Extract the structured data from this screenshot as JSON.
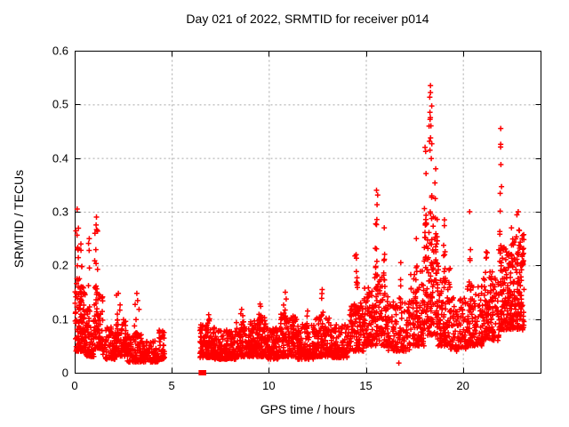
{
  "chart": {
    "title": "Day 021 of 2022, SRMTID for receiver p014",
    "xlabel": "GPS time / hours",
    "ylabel": "SRMTID / TECUs",
    "marker_color": "#ff0000",
    "grid_color": "#a8a8a8",
    "frame_color": "#000000",
    "xtick_labels": [
      "0",
      "5",
      "10",
      "15",
      "20"
    ],
    "ytick_labels": [
      "0",
      "0.1",
      "0.2",
      "0.3",
      "0.4",
      "0.5",
      "0.6"
    ]
  },
  "chart_data": {
    "type": "scatter",
    "title": "Day 021 of 2022, SRMTID for receiver p014",
    "xlabel": "GPS time / hours",
    "ylabel": "SRMTID / TECUs",
    "xlim": [
      0,
      24
    ],
    "ylim": [
      0,
      0.6
    ],
    "xticks": [
      0,
      5,
      10,
      15,
      20
    ],
    "yticks": [
      0,
      0.1,
      0.2,
      0.3,
      0.4,
      0.5,
      0.6
    ],
    "grid": true,
    "legend": "none",
    "marker": "plus",
    "series_color": "#ff0000",
    "seed": 987123,
    "bands": [
      {
        "x0": 0.02,
        "x1": 0.55,
        "n": 120,
        "ylo": 0.04,
        "yhi": 0.175
      },
      {
        "x0": 0.55,
        "x1": 1.0,
        "n": 65,
        "ylo": 0.03,
        "yhi": 0.125
      },
      {
        "x0": 1.0,
        "x1": 1.45,
        "n": 75,
        "ylo": 0.045,
        "yhi": 0.165
      },
      {
        "x0": 1.45,
        "x1": 2.1,
        "n": 80,
        "ylo": 0.025,
        "yhi": 0.085
      },
      {
        "x0": 2.1,
        "x1": 2.7,
        "n": 85,
        "ylo": 0.03,
        "yhi": 0.1
      },
      {
        "x0": 2.7,
        "x1": 3.5,
        "n": 100,
        "ylo": 0.02,
        "yhi": 0.075
      },
      {
        "x0": 3.5,
        "x1": 4.3,
        "n": 90,
        "ylo": 0.02,
        "yhi": 0.06
      },
      {
        "x0": 4.3,
        "x1": 4.65,
        "n": 40,
        "ylo": 0.025,
        "yhi": 0.08
      },
      {
        "x0": 6.45,
        "x1": 7.2,
        "n": 110,
        "ylo": 0.028,
        "yhi": 0.09
      },
      {
        "x0": 7.2,
        "x1": 8.3,
        "n": 150,
        "ylo": 0.025,
        "yhi": 0.08
      },
      {
        "x0": 8.3,
        "x1": 9.2,
        "n": 130,
        "ylo": 0.03,
        "yhi": 0.095
      },
      {
        "x0": 9.2,
        "x1": 9.9,
        "n": 110,
        "ylo": 0.03,
        "yhi": 0.11
      },
      {
        "x0": 9.9,
        "x1": 10.6,
        "n": 105,
        "ylo": 0.025,
        "yhi": 0.085
      },
      {
        "x0": 10.6,
        "x1": 11.45,
        "n": 125,
        "ylo": 0.03,
        "yhi": 0.115
      },
      {
        "x0": 11.45,
        "x1": 12.35,
        "n": 125,
        "ylo": 0.025,
        "yhi": 0.09
      },
      {
        "x0": 12.35,
        "x1": 13.15,
        "n": 115,
        "ylo": 0.03,
        "yhi": 0.105
      },
      {
        "x0": 13.15,
        "x1": 14.1,
        "n": 125,
        "ylo": 0.028,
        "yhi": 0.09
      },
      {
        "x0": 14.1,
        "x1": 14.9,
        "n": 105,
        "ylo": 0.04,
        "yhi": 0.13
      },
      {
        "x0": 14.9,
        "x1": 15.45,
        "n": 85,
        "ylo": 0.05,
        "yhi": 0.16
      },
      {
        "x0": 15.45,
        "x1": 16.15,
        "n": 100,
        "ylo": 0.05,
        "yhi": 0.185
      },
      {
        "x0": 16.15,
        "x1": 17.3,
        "n": 120,
        "ylo": 0.04,
        "yhi": 0.14
      },
      {
        "x0": 17.3,
        "x1": 18.0,
        "n": 100,
        "ylo": 0.05,
        "yhi": 0.19
      },
      {
        "x0": 18.0,
        "x1": 18.7,
        "n": 130,
        "ylo": 0.07,
        "yhi": 0.3
      },
      {
        "x0": 18.7,
        "x1": 19.35,
        "n": 100,
        "ylo": 0.05,
        "yhi": 0.2
      },
      {
        "x0": 19.35,
        "x1": 20.15,
        "n": 85,
        "ylo": 0.04,
        "yhi": 0.14
      },
      {
        "x0": 20.15,
        "x1": 21.0,
        "n": 115,
        "ylo": 0.05,
        "yhi": 0.165
      },
      {
        "x0": 21.0,
        "x1": 21.85,
        "n": 125,
        "ylo": 0.06,
        "yhi": 0.19
      },
      {
        "x0": 21.85,
        "x1": 22.45,
        "n": 115,
        "ylo": 0.08,
        "yhi": 0.235
      },
      {
        "x0": 22.45,
        "x1": 23.15,
        "n": 140,
        "ylo": 0.08,
        "yhi": 0.26
      }
    ],
    "spikes": [
      {
        "x": 0.13,
        "ylo": 0.17,
        "yhi": 0.305,
        "n": 11,
        "xspread": 0.07
      },
      {
        "x": 0.32,
        "ylo": 0.12,
        "yhi": 0.24,
        "n": 7,
        "xspread": 0.06
      },
      {
        "x": 0.75,
        "ylo": 0.12,
        "yhi": 0.25,
        "n": 5,
        "xspread": 0.05
      },
      {
        "x": 1.12,
        "ylo": 0.13,
        "yhi": 0.29,
        "n": 12,
        "xspread": 0.09
      },
      {
        "x": 2.25,
        "ylo": 0.08,
        "yhi": 0.148,
        "n": 8,
        "xspread": 0.1
      },
      {
        "x": 3.2,
        "ylo": 0.065,
        "yhi": 0.148,
        "n": 9,
        "xspread": 0.12
      },
      {
        "x": 6.9,
        "ylo": 0.07,
        "yhi": 0.108,
        "n": 6,
        "xspread": 0.07
      },
      {
        "x": 8.6,
        "ylo": 0.075,
        "yhi": 0.118,
        "n": 6,
        "xspread": 0.07
      },
      {
        "x": 9.55,
        "ylo": 0.08,
        "yhi": 0.128,
        "n": 7,
        "xspread": 0.08
      },
      {
        "x": 10.85,
        "ylo": 0.08,
        "yhi": 0.15,
        "n": 8,
        "xspread": 0.09
      },
      {
        "x": 12.0,
        "ylo": 0.07,
        "yhi": 0.115,
        "n": 5,
        "xspread": 0.06
      },
      {
        "x": 12.75,
        "ylo": 0.08,
        "yhi": 0.155,
        "n": 8,
        "xspread": 0.06
      },
      {
        "x": 14.5,
        "ylo": 0.1,
        "yhi": 0.22,
        "n": 9,
        "xspread": 0.07
      },
      {
        "x": 15.55,
        "ylo": 0.15,
        "yhi": 0.34,
        "n": 13,
        "xspread": 0.07
      },
      {
        "x": 15.95,
        "ylo": 0.13,
        "yhi": 0.27,
        "n": 8,
        "xspread": 0.05
      },
      {
        "x": 16.8,
        "ylo": 0.1,
        "yhi": 0.205,
        "n": 6,
        "xspread": 0.05
      },
      {
        "x": 17.6,
        "ylo": 0.12,
        "yhi": 0.25,
        "n": 6,
        "xspread": 0.06
      },
      {
        "x": 18.05,
        "ylo": 0.2,
        "yhi": 0.42,
        "n": 12,
        "xspread": 0.07
      },
      {
        "x": 18.33,
        "ylo": 0.27,
        "yhi": 0.535,
        "n": 18,
        "xspread": 0.08
      },
      {
        "x": 18.6,
        "ylo": 0.22,
        "yhi": 0.38,
        "n": 8,
        "xspread": 0.05
      },
      {
        "x": 19.05,
        "ylo": 0.13,
        "yhi": 0.285,
        "n": 9,
        "xspread": 0.06
      },
      {
        "x": 20.35,
        "ylo": 0.12,
        "yhi": 0.3,
        "n": 8,
        "xspread": 0.06
      },
      {
        "x": 21.2,
        "ylo": 0.12,
        "yhi": 0.225,
        "n": 7,
        "xspread": 0.07
      },
      {
        "x": 21.95,
        "ylo": 0.2,
        "yhi": 0.455,
        "n": 13,
        "xspread": 0.05
      },
      {
        "x": 22.5,
        "ylo": 0.15,
        "yhi": 0.27,
        "n": 7,
        "xspread": 0.07
      },
      {
        "x": 22.85,
        "ylo": 0.14,
        "yhi": 0.3,
        "n": 9,
        "xspread": 0.07
      },
      {
        "x": 23.05,
        "ylo": 0.12,
        "yhi": 0.25,
        "n": 7,
        "xspread": 0.05
      }
    ],
    "special_points": [
      {
        "x": 6.52,
        "y": 0.0,
        "marker": "filled-square"
      },
      {
        "x": 6.64,
        "y": 0.0,
        "marker": "filled-square"
      },
      {
        "x": 16.7,
        "y": 0.018,
        "marker": "plus"
      }
    ]
  }
}
